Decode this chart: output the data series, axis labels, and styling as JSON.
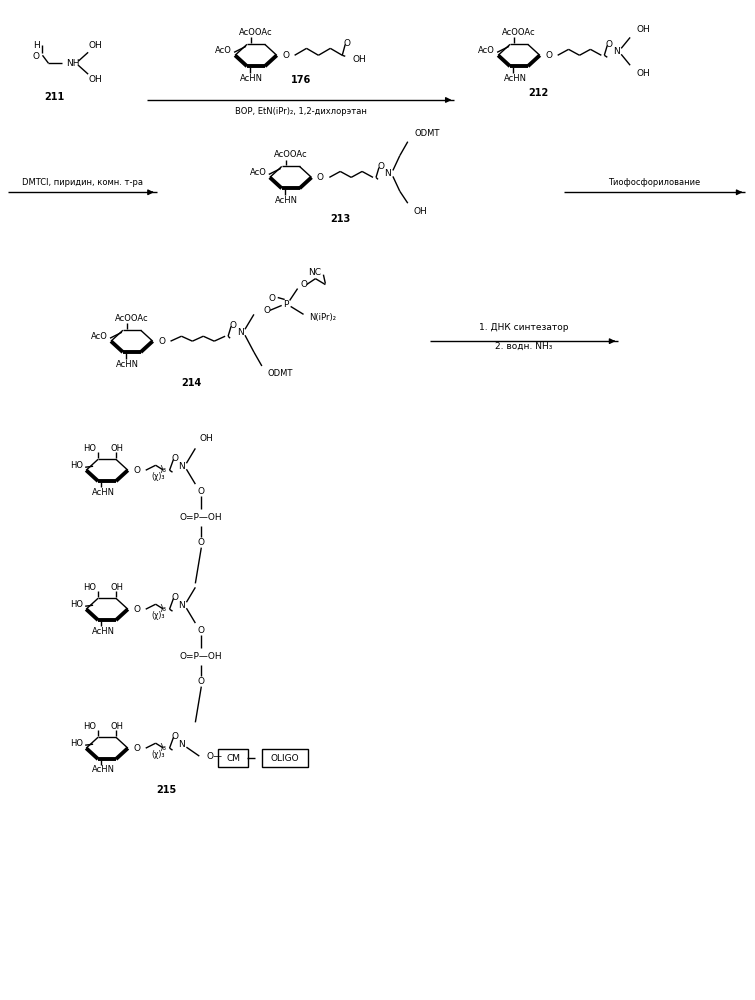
{
  "bg": "#ffffff",
  "compounds": [
    "211",
    "212",
    "213",
    "214",
    "215"
  ],
  "r1_label": "BOP, EtN(іPr)₂, 1,2-дихлорэтан",
  "r2_label": "DMTCl, пиридин, комн. т-ра",
  "r3_label": "Тиофосфорилование",
  "r4_label1": "1. ДНК синтезатор",
  "r4_label2": "2. водн. NH₃"
}
